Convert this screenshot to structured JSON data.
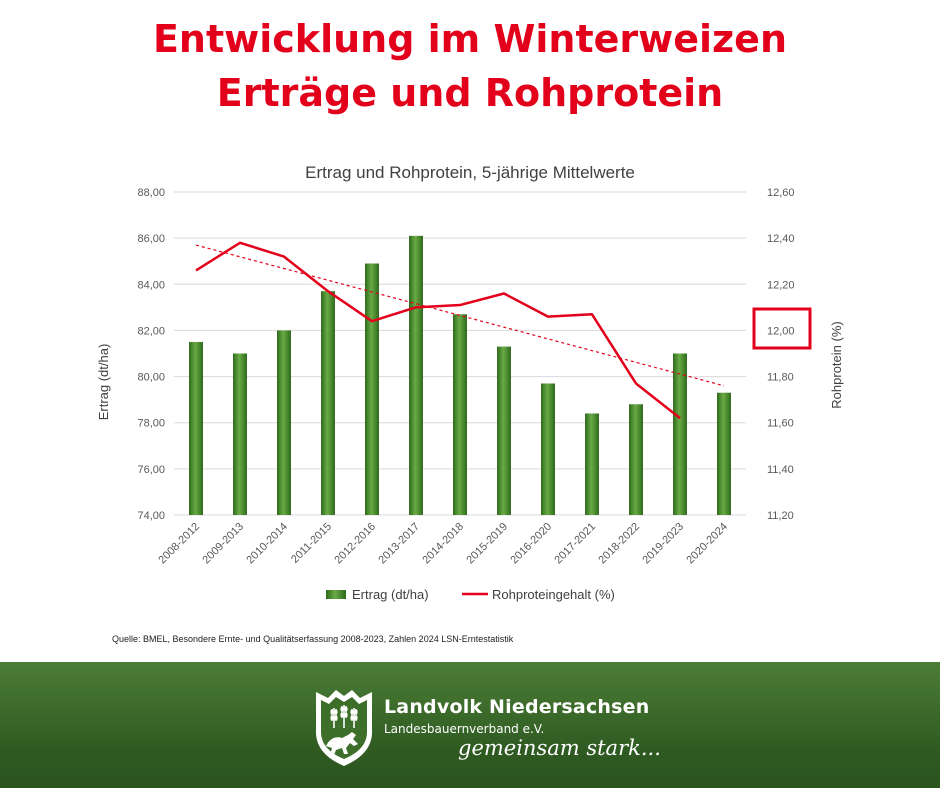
{
  "header": {
    "line1": "Entwicklung im Winterweizen",
    "line2": "Erträge und Rohprotein"
  },
  "chart_data": {
    "type": "bar",
    "title": "Ertrag und Rohprotein, 5-jährige Mittelwerte",
    "categories": [
      "2008-2012",
      "2009-2013",
      "2010-2014",
      "2011-2015",
      "2012-2016",
      "2013-2017",
      "2014-2018",
      "2015-2019",
      "2016-2020",
      "2017-2021",
      "2018-2022",
      "2019-2023",
      "2020-2024"
    ],
    "series": [
      {
        "name": "Ertrag (dt/ha)",
        "type": "bar",
        "axis": "left",
        "values": [
          81.5,
          81.0,
          82.0,
          83.7,
          84.9,
          86.1,
          82.7,
          81.3,
          79.7,
          78.4,
          78.8,
          81.0,
          79.3
        ]
      },
      {
        "name": "Rohproteingehalt (%)",
        "type": "line",
        "axis": "right",
        "values": [
          12.26,
          12.38,
          12.32,
          12.17,
          12.04,
          12.1,
          12.11,
          12.16,
          12.06,
          12.07,
          11.77,
          11.62,
          null
        ]
      }
    ],
    "trendline": {
      "series": "Rohproteingehalt (%)",
      "style": "dotted",
      "values": [
        12.37,
        11.76
      ]
    },
    "ylabel": "Ertrag (dt/ha)",
    "ylabel_right": "Rohprotein (%)",
    "ylim": [
      74,
      88
    ],
    "ylim_right": [
      11.2,
      12.6
    ],
    "yticks": [
      "74,00",
      "76,00",
      "78,00",
      "80,00",
      "82,00",
      "84,00",
      "86,00",
      "88,00"
    ],
    "yticks_right": [
      "11,20",
      "11,40",
      "11,60",
      "11,80",
      "12,00",
      "12,20",
      "12,40",
      "12,60"
    ],
    "highlight_tick": "12,00",
    "grid": true,
    "legend": "bottom",
    "colors": {
      "bar": "#4a8a2e",
      "line": "#e3001b",
      "highlight_box": "#e3001b"
    }
  },
  "source": "Quelle: BMEL, Besondere Ernte- und Qualitätserfassung 2008-2023, Zahlen 2024 LSN-Erntestatistik",
  "footer": {
    "brand_name": "Landvolk Niedersachsen",
    "brand_sub": "Landesbauernverband e.V.",
    "slogan": "gemeinsam stark..."
  }
}
